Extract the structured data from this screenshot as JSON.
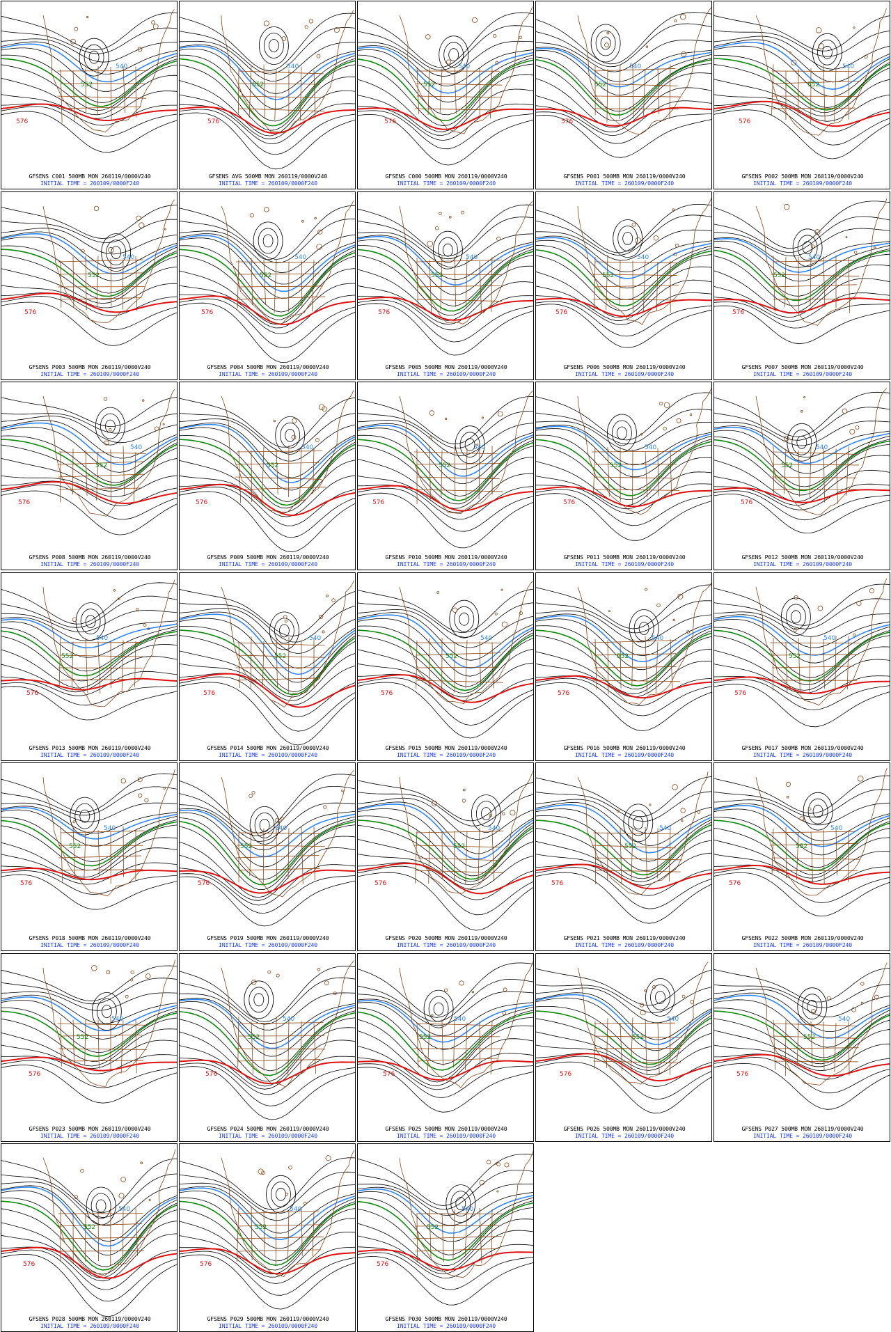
{
  "page_background": "#ffffff",
  "colors": {
    "height_contour": "#000000",
    "contour_552": "#0a8a0a",
    "contour_540": "#2e86ff",
    "contour_576": "#e01010",
    "map_outline": "#8b4513",
    "caption_main": "#000000",
    "caption_time": "#1a3cff"
  },
  "panels": [
    {
      "member": "C001",
      "title": "GFSENS C001 500MB MON 260119/0000V240",
      "time": "INITIAL TIME = 260109/0000F240"
    },
    {
      "member": "AVG",
      "title": "GFSENS AVG 500MB MON 260119/0000V240",
      "time": "INITIAL TIME = 260109/0000F240"
    },
    {
      "member": "C000",
      "title": "GFSENS C000 500MB MON 260119/0000V240",
      "time": "INITIAL TIME = 260109/0000F240"
    },
    {
      "member": "P001",
      "title": "GFSENS P001 500MB MON 260119/0000V240",
      "time": "INITIAL TIME = 260109/0000F240"
    },
    {
      "member": "P002",
      "title": "GFSENS P002 500MB MON 260119/0000V240",
      "time": "INITIAL TIME = 260109/0000F240"
    },
    {
      "member": "P003",
      "title": "GFSENS P003 500MB MON 260119/0000V240",
      "time": "INITIAL TIME = 260109/0000F240"
    },
    {
      "member": "P004",
      "title": "GFSENS P004 500MB MON 260119/0000V240",
      "time": "INITIAL TIME = 260109/0000F240"
    },
    {
      "member": "P005",
      "title": "GFSENS P005 500MB MON 260119/0000V240",
      "time": "INITIAL TIME = 260109/0000F240"
    },
    {
      "member": "P006",
      "title": "GFSENS P006 500MB MON 260119/0000V240",
      "time": "INITIAL TIME = 260109/0000F240"
    },
    {
      "member": "P007",
      "title": "GFSENS P007 500MB MON 260119/0000V240",
      "time": "INITIAL TIME = 260109/0000F240"
    },
    {
      "member": "P008",
      "title": "GFSENS P008 500MB MON 260119/0000V240",
      "time": "INITIAL TIME = 260109/0000F240"
    },
    {
      "member": "P009",
      "title": "GFSENS P009 500MB MON 260119/0000V240",
      "time": "INITIAL TIME = 260109/0000F240"
    },
    {
      "member": "P010",
      "title": "GFSENS P010 500MB MON 260119/0000V240",
      "time": "INITIAL TIME = 260109/0000F240"
    },
    {
      "member": "P011",
      "title": "GFSENS P011 500MB MON 260119/0000V240",
      "time": "INITIAL TIME = 260109/0000F240"
    },
    {
      "member": "P012",
      "title": "GFSENS P012 500MB MON 260119/0000V240",
      "time": "INITIAL TIME = 260109/0000F240"
    },
    {
      "member": "P013",
      "title": "GFSENS P013 500MB MON 260119/0000V240",
      "time": "INITIAL TIME = 260109/0000F240"
    },
    {
      "member": "P014",
      "title": "GFSENS P014 500MB MON 260119/0000V240",
      "time": "INITIAL TIME = 260109/0000F240"
    },
    {
      "member": "P015",
      "title": "GFSENS P015 500MB MON 260119/0000V240",
      "time": "INITIAL TIME = 260109/0000F240"
    },
    {
      "member": "P016",
      "title": "GFSENS P016 500MB MON 260119/0000V240",
      "time": "INITIAL TIME = 260109/0000F240"
    },
    {
      "member": "P017",
      "title": "GFSENS P017 500MB MON 260119/0000V240",
      "time": "INITIAL TIME = 260109/0000F240"
    },
    {
      "member": "P018",
      "title": "GFSENS P018 500MB MON 260119/0000V240",
      "time": "INITIAL TIME = 260109/0000F240"
    },
    {
      "member": "P019",
      "title": "GFSENS P019 500MB MON 260119/0000V240",
      "time": "INITIAL TIME = 260109/0000F240"
    },
    {
      "member": "P020",
      "title": "GFSENS P020 500MB MON 260119/0000V240",
      "time": "INITIAL TIME = 260109/0000F240"
    },
    {
      "member": "P021",
      "title": "GFSENS P021 500MB MON 260119/0000V240",
      "time": "INITIAL TIME = 260109/0000F240"
    },
    {
      "member": "P022",
      "title": "GFSENS P022 500MB MON 260119/0000V240",
      "time": "INITIAL TIME = 260109/0000F240"
    },
    {
      "member": "P023",
      "title": "GFSENS P023 500MB MON 260119/0000V240",
      "time": "INITIAL TIME = 260109/0000F240"
    },
    {
      "member": "P024",
      "title": "GFSENS P024 500MB MON 260119/0000V240",
      "time": "INITIAL TIME = 260109/0000F240"
    },
    {
      "member": "P025",
      "title": "GFSENS P025 500MB MON 260119/0000V240",
      "time": "INITIAL TIME = 260109/0000F240"
    },
    {
      "member": "P026",
      "title": "GFSENS P026 500MB MON 260119/0000V240",
      "time": "INITIAL TIME = 260109/0000F240"
    },
    {
      "member": "P027",
      "title": "GFSENS P027 500MB MON 260119/0000V240",
      "time": "INITIAL TIME = 260109/0000F240"
    },
    {
      "member": "P028",
      "title": "GFSENS P028 500MB MON 260119/0000V240",
      "time": "INITIAL TIME = 260109/0000F240"
    },
    {
      "member": "P029",
      "title": "GFSENS P029 500MB MON 260119/0000V240",
      "time": "INITIAL TIME = 260109/0000F240"
    },
    {
      "member": "P030",
      "title": "GFSENS P030 500MB MON 260119/0000V240",
      "time": "INITIAL TIME = 260109/0000F240"
    }
  ],
  "contour_labels": {
    "c540": "540",
    "c552": "552",
    "c576": "576"
  }
}
